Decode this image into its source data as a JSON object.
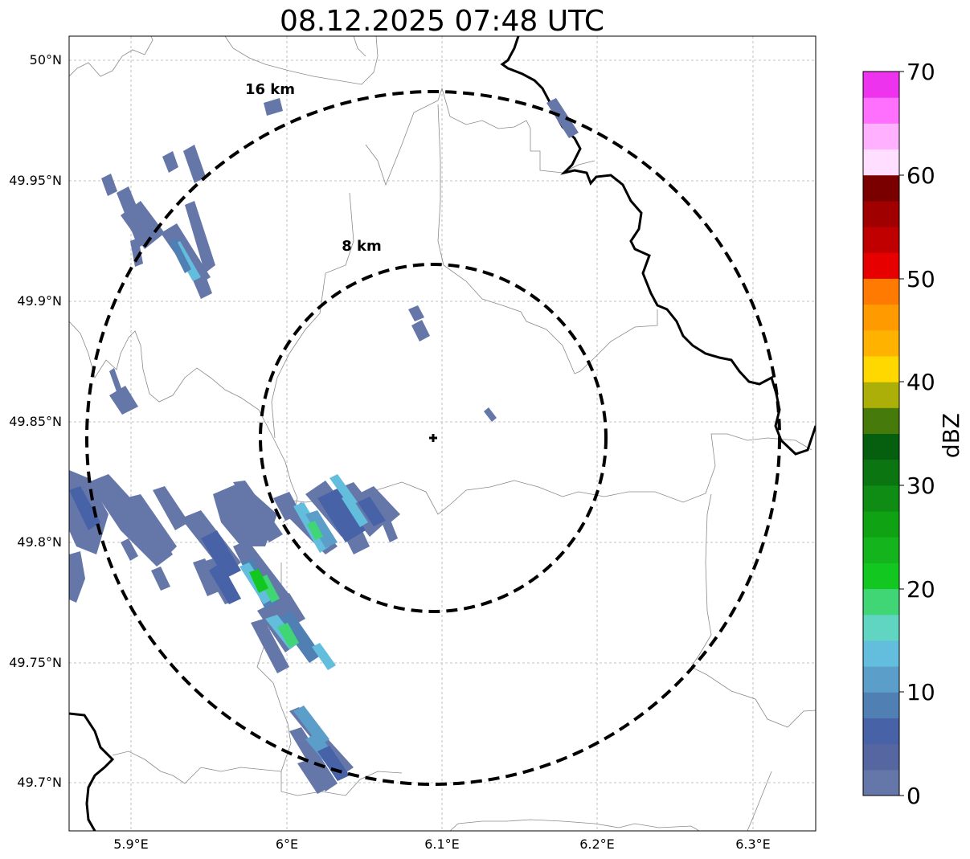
{
  "map": {
    "title": "08.12.2025 07:48 UTC",
    "lon_ticks": [
      "5.9°E",
      "6°E",
      "6.1°E",
      "6.2°E",
      "6.3°E"
    ],
    "lat_ticks": [
      "50°N",
      "49.95°N",
      "49.9°N",
      "49.85°N",
      "49.8°N",
      "49.75°N",
      "49.7°N"
    ],
    "rings": [
      {
        "label": "8 km",
        "radius_km": 8
      },
      {
        "label": "16 km",
        "radius_km": 16
      }
    ],
    "radar_site": {
      "lon": 6.095,
      "lat": 49.843
    },
    "colorbar": {
      "label": "dBZ",
      "ticks": [
        "0",
        "10",
        "20",
        "30",
        "40",
        "50",
        "60",
        "70"
      ],
      "levels": [
        0,
        2.5,
        5,
        7.5,
        10,
        12.5,
        15,
        17.5,
        20,
        22.5,
        25,
        27.5,
        30,
        32.5,
        35,
        37.5,
        40,
        42.5,
        45,
        47.5,
        50,
        52.5,
        55,
        57.5,
        60,
        62.5,
        65,
        67.5,
        70
      ],
      "colors": [
        "#6576a8",
        "#5566a1",
        "#4762a6",
        "#4f7fb3",
        "#5a9ec9",
        "#63bede",
        "#60d5c2",
        "#40d575",
        "#12c820",
        "#13b41c",
        "#0fa313",
        "#0e8c14",
        "#0b7611",
        "#055f0e",
        "#467a0b",
        "#acaf08",
        "#ffd800",
        "#ffb300",
        "#ff9b00",
        "#ff7a00",
        "#e70000",
        "#c00000",
        "#a00000",
        "#7a0000",
        "#ffdeff",
        "#ffb0ff",
        "#ff70ff",
        "#ee33ee"
      ]
    }
  }
}
